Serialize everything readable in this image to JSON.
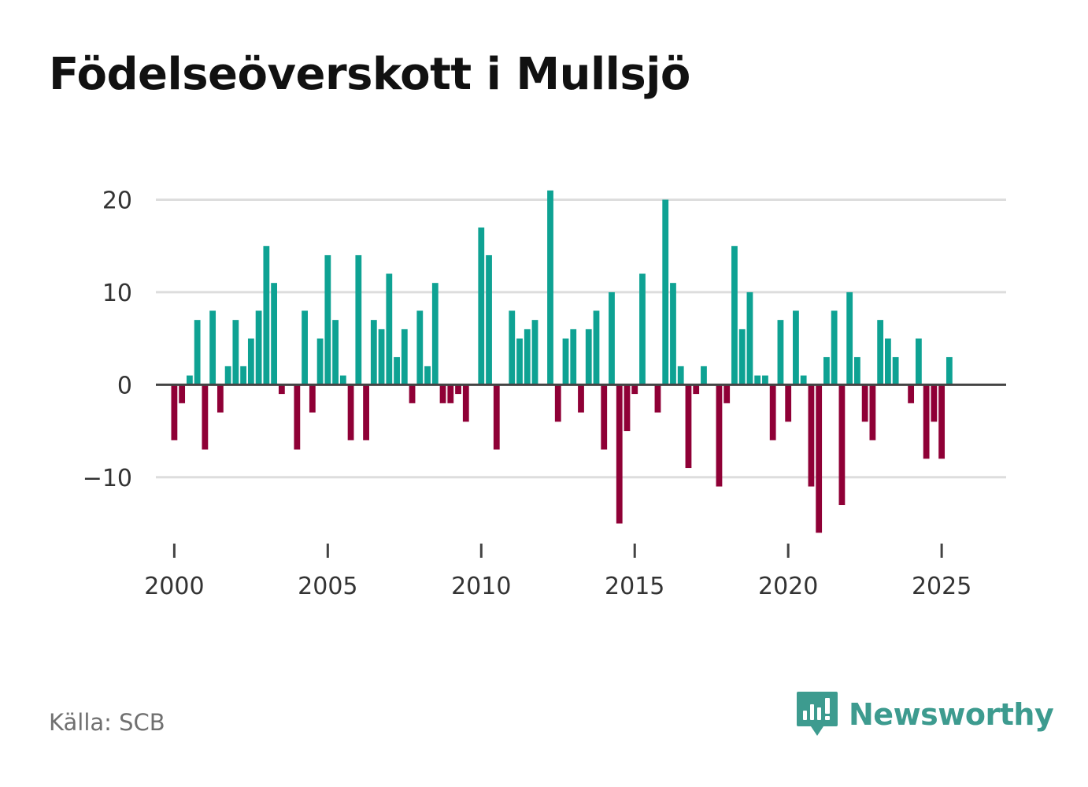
{
  "title": "Födelseöverskott i Mullsjö",
  "source": "Källa: SCB",
  "brand": {
    "name": "Newsworthy",
    "icon": "newsworthy-logo-icon",
    "color": "#3d9b8f"
  },
  "colors": {
    "positive": "#0ea293",
    "negative": "#8f0036",
    "grid": "#dddddd",
    "zero_line": "#444444"
  },
  "chart_data": {
    "type": "bar",
    "title": "Födelseöverskott i Mullsjö",
    "xlabel": "",
    "ylabel": "",
    "frequency": "quarterly",
    "start": 2000,
    "ylim": [
      -17,
      22
    ],
    "xlim": [
      1999.4,
      2027.1
    ],
    "y_ticks": [
      20,
      10,
      0,
      -10
    ],
    "y_tick_labels": [
      "20",
      "10",
      "0",
      "−10"
    ],
    "x_ticks": [
      2000,
      2005,
      2010,
      2015,
      2020,
      2025
    ],
    "x_tick_labels": [
      "2000",
      "2005",
      "2010",
      "2015",
      "2020",
      "2025"
    ],
    "grid": true,
    "values": [
      -6,
      -2,
      1,
      7,
      -7,
      8,
      -3,
      2,
      7,
      2,
      5,
      8,
      15,
      11,
      -1,
      0,
      -7,
      8,
      -3,
      5,
      14,
      7,
      1,
      -6,
      14,
      -6,
      7,
      6,
      12,
      3,
      6,
      -2,
      8,
      2,
      11,
      -2,
      -2,
      -1,
      -4,
      0,
      17,
      14,
      -7,
      0,
      8,
      5,
      6,
      7,
      0,
      21,
      -4,
      5,
      6,
      -3,
      6,
      8,
      -7,
      10,
      -15,
      -5,
      -1,
      12,
      0,
      -3,
      20,
      11,
      2,
      -9,
      -1,
      2,
      0,
      -11,
      -2,
      15,
      6,
      10,
      1,
      1,
      -6,
      7,
      -4,
      8,
      1,
      -11,
      -16,
      3,
      8,
      -13,
      10,
      3,
      -4,
      -6,
      7,
      5,
      3,
      0,
      -2,
      5,
      -8,
      -4,
      -8,
      3
    ]
  }
}
